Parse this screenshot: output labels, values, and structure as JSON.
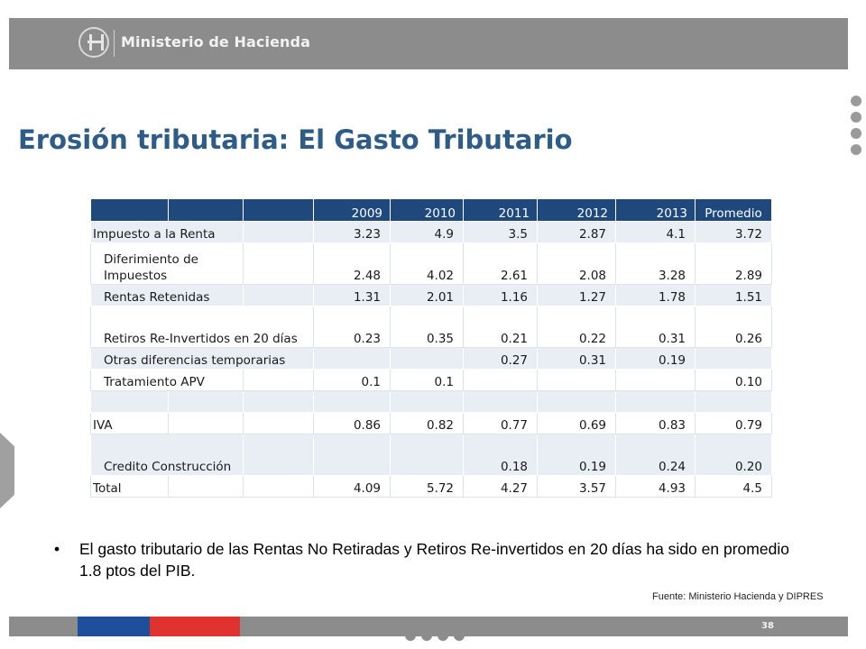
{
  "header": {
    "ministry_name": "Ministerio de Hacienda"
  },
  "title": "Erosión tributaria: El Gasto Tributario",
  "table": {
    "columns": [
      "2009",
      "2010",
      "2011",
      "2012",
      "2013",
      "Promedio"
    ],
    "rows": [
      {
        "label": "Impuesto a la Renta",
        "values": [
          "3.23",
          "4.9",
          "3.5",
          "2.87",
          "4.1",
          "3.72"
        ]
      },
      {
        "label": "Diferimiento de Impuestos",
        "values": [
          "2.48",
          "4.02",
          "2.61",
          "2.08",
          "3.28",
          "2.89"
        ]
      },
      {
        "label": "Rentas Retenidas",
        "values": [
          "1.31",
          "2.01",
          "1.16",
          "1.27",
          "1.78",
          "1.51"
        ]
      },
      {
        "label": "Retiros Re-Invertidos en 20 días",
        "values": [
          "0.23",
          "0.35",
          "0.21",
          "0.22",
          "0.31",
          "0.26"
        ]
      },
      {
        "label": "Otras diferencias temporarias",
        "values": [
          "",
          "",
          "0.27",
          "0.31",
          "0.19",
          ""
        ]
      },
      {
        "label": "Tratamiento APV",
        "values": [
          "0.1",
          "0.1",
          "",
          "",
          "",
          "0.10"
        ]
      },
      {
        "label": "",
        "values": [
          "",
          "",
          "",
          "",
          "",
          ""
        ]
      },
      {
        "label": "IVA",
        "values": [
          "0.86",
          "0.82",
          "0.77",
          "0.69",
          "0.83",
          "0.79"
        ]
      },
      {
        "label": "Credito Construcción",
        "values": [
          "",
          "",
          "0.18",
          "0.19",
          "0.24",
          "0.20"
        ]
      },
      {
        "label": "Total",
        "values": [
          "4.09",
          "5.72",
          "4.27",
          "3.57",
          "4.93",
          "4.5"
        ]
      }
    ]
  },
  "bullet": {
    "symbol": "•",
    "text": "El gasto tributario de las Rentas No Retiradas  y Retiros Re-invertidos en 20 días ha sido en promedio  1.8 ptos del PIB."
  },
  "source": "Fuente: Ministerio Hacienda y DIPRES",
  "page_number": "38",
  "colors": {
    "title": "#2e5c87",
    "table_header": "#1f497d",
    "row_tint": "#e9edf4",
    "bar_gray": "#8c8c8c",
    "flag_blue": "#1f4e9c",
    "flag_red": "#e0322f"
  },
  "icons": [
    "ministry-logo-icon"
  ]
}
